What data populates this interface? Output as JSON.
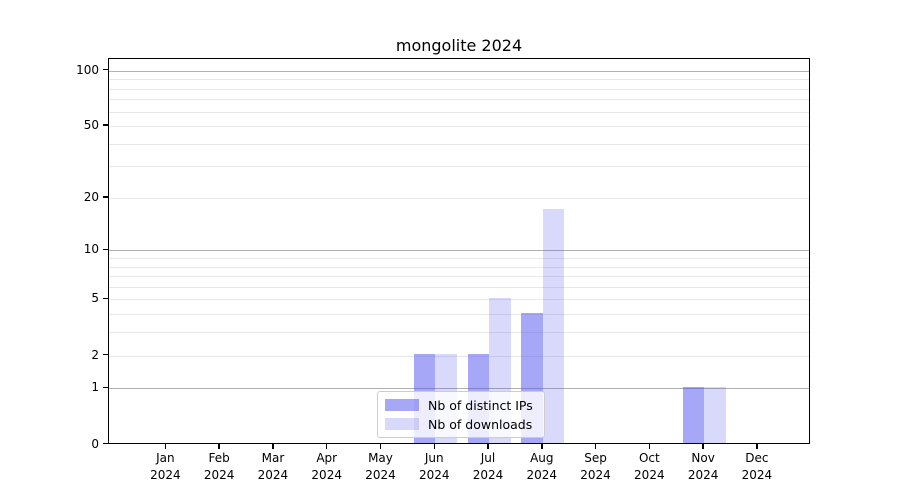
{
  "title": "mongolite 2024",
  "chart_data": {
    "type": "bar",
    "title": "mongolite 2024",
    "x_categories": [
      "Jan",
      "Feb",
      "Mar",
      "Apr",
      "May",
      "Jun",
      "Jul",
      "Aug",
      "Sep",
      "Oct",
      "Nov",
      "Dec"
    ],
    "x_year": "2024",
    "y_scale": "log1p",
    "y_ticks": [
      0,
      1,
      2,
      5,
      10,
      20,
      50,
      100
    ],
    "y_minor_gridlines": [
      2,
      3,
      4,
      5,
      6,
      7,
      8,
      9,
      20,
      30,
      40,
      50,
      60,
      70,
      80,
      90
    ],
    "y_major_gridlines": [
      1,
      10,
      100
    ],
    "ylim": [
      0,
      116
    ],
    "grid": "horizontal",
    "legend_position": "bottom-center",
    "series": [
      {
        "name": "Nb of distinct IPs",
        "color": "#5050f0",
        "opacity": 0.5,
        "values": [
          0,
          0,
          0,
          0,
          0,
          2,
          2,
          4,
          0,
          0,
          1,
          0
        ]
      },
      {
        "name": "Nb of downloads",
        "color": "#5050f0",
        "opacity": 0.22,
        "values": [
          0,
          0,
          0,
          0,
          0,
          2,
          5,
          17,
          0,
          0,
          1,
          0
        ]
      }
    ],
    "colors": {
      "axis": "#000000",
      "grid_minor": "#e8e8e8",
      "grid_major": "#b0b0b0",
      "background": "#ffffff"
    }
  }
}
